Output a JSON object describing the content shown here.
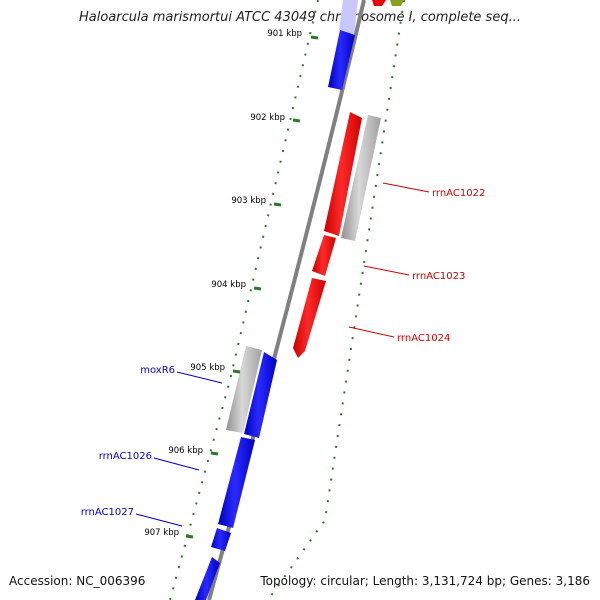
{
  "title": "Haloarcula marismortui ATCC 43049 chromosome I, complete seq...",
  "footer": {
    "accession": "Accession: NC_006396",
    "summary": "Topology: circular; Length: 3,131,724 bp; Genes: 3,186"
  },
  "ticks": [
    {
      "label": "901 kbp",
      "kbp": 901
    },
    {
      "label": "902 kbp",
      "kbp": 902
    },
    {
      "label": "903 kbp",
      "kbp": 903
    },
    {
      "label": "904 kbp",
      "kbp": 904
    },
    {
      "label": "905 kbp",
      "kbp": 905
    },
    {
      "label": "906 kbp",
      "kbp": 906
    },
    {
      "label": "907 kbp",
      "kbp": 907
    }
  ],
  "gene_labels": [
    {
      "text": "rrnAC1022",
      "color": "#cc0000"
    },
    {
      "text": "rrnAC1023",
      "color": "#cc0000"
    },
    {
      "text": "rrnAC1024",
      "color": "#cc0000"
    },
    {
      "text": "moxR6",
      "color": "#0000cc"
    },
    {
      "text": "rrnAC1026",
      "color": "#0000cc"
    },
    {
      "text": "rrnAC1027",
      "color": "#0000cc"
    }
  ],
  "colors": {
    "forward_cds": "#0000ee",
    "reverse_cds": "#ee0000",
    "other_feature": "#b0b0b0",
    "tick": "#2a7a2a",
    "backbone": "#808080"
  }
}
